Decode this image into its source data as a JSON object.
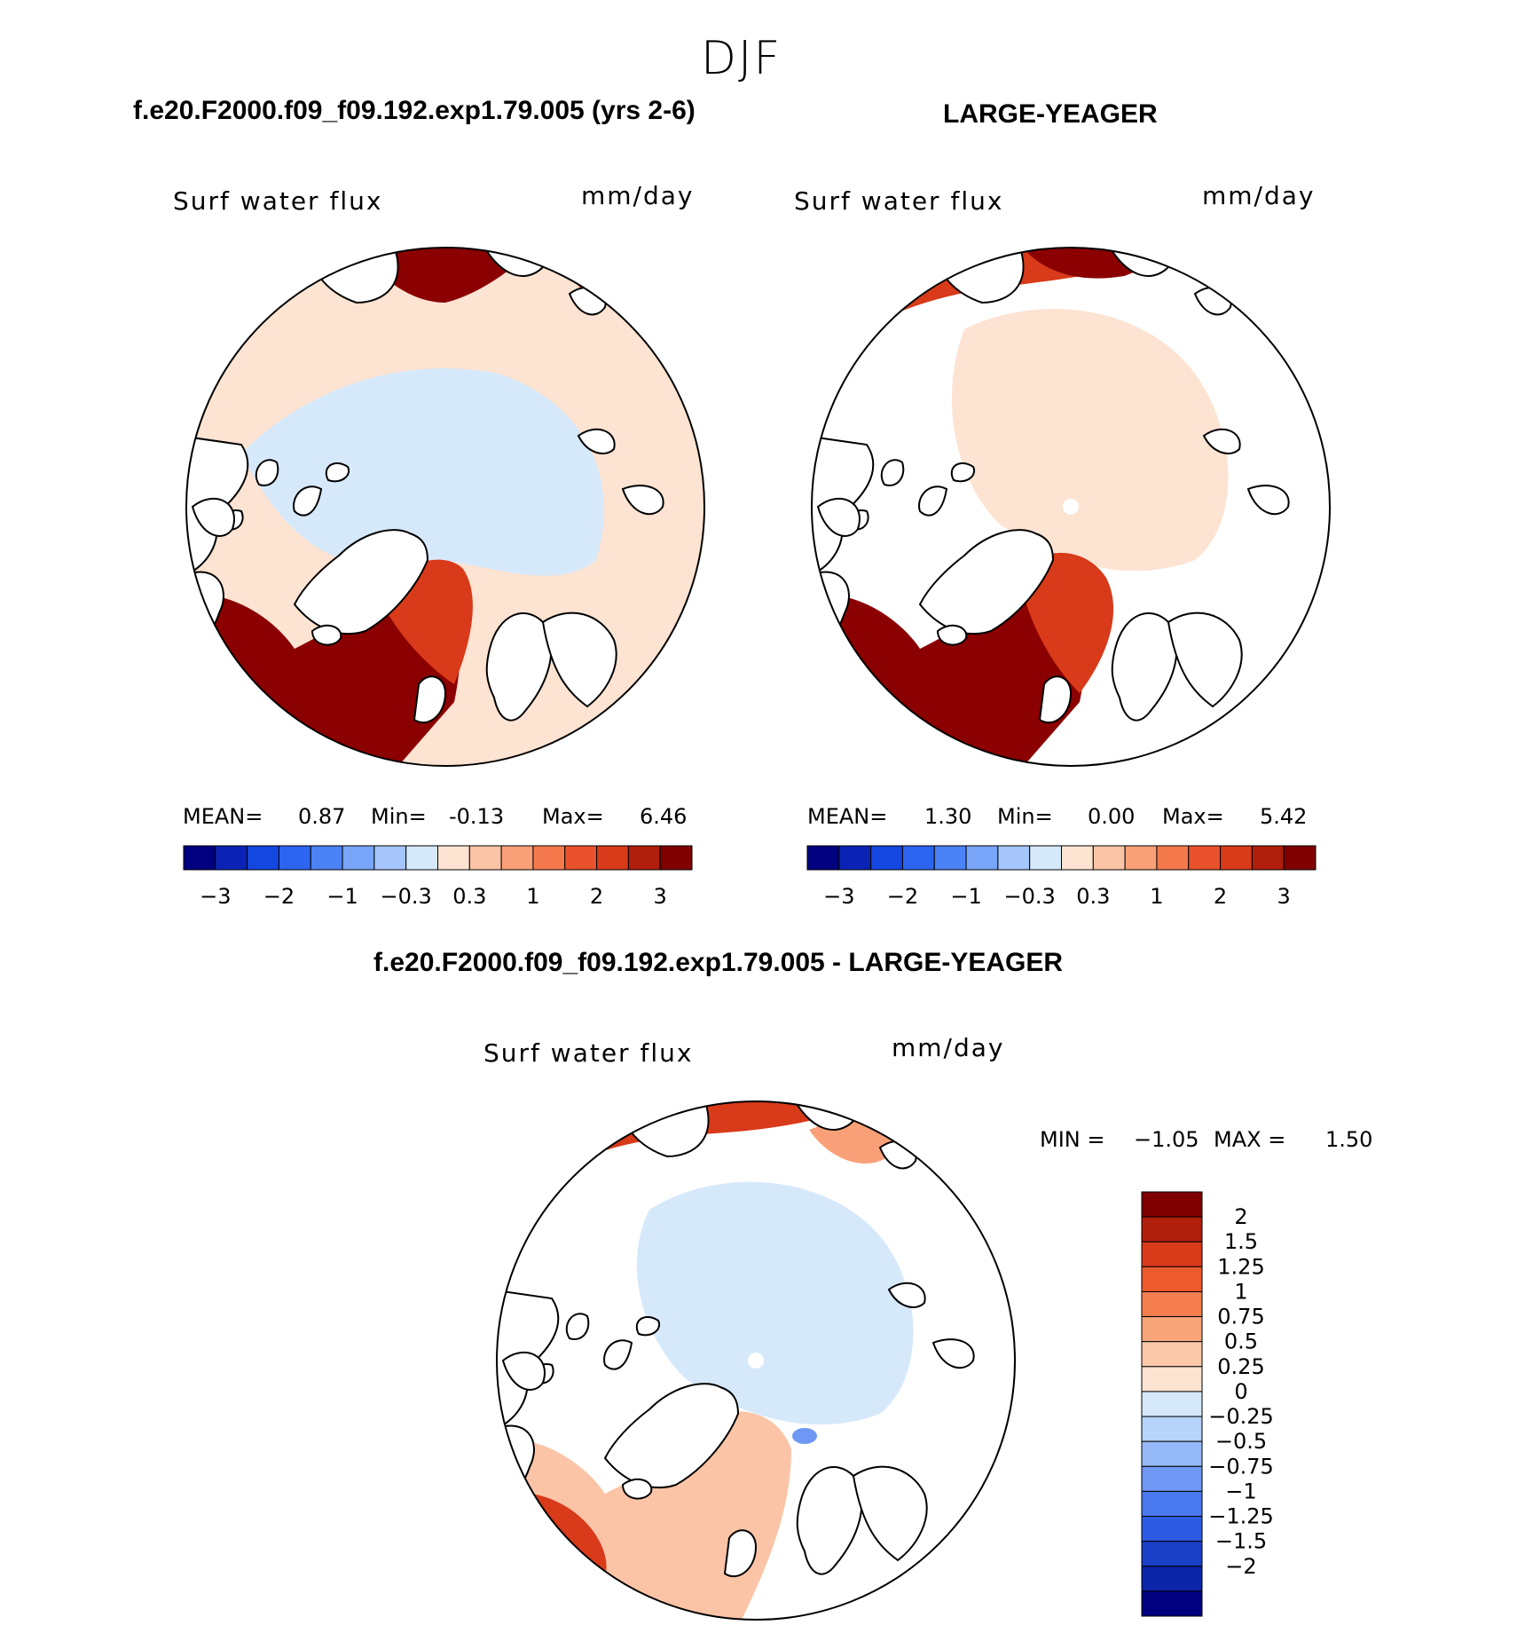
{
  "page": {
    "season": "DJF",
    "left_title": "f.e20.F2000.f09_f09.192.exp1.79.005 (yrs 2-6)",
    "right_title": "LARGE-YEAGER",
    "diff_title": "f.e20.F2000.f09_f09.192.exp1.79.005 - LARGE-YEAGER"
  },
  "colors": {
    "ocean_warm_dark": "#8b0000",
    "ocean_warm": "#d83a1a",
    "light_warm": "#fde3d2",
    "light_cool": "#d6e9fb",
    "land": "#ffffff",
    "coast": "#000000",
    "pole": "#ffffff"
  },
  "palette_main": [
    "#000080",
    "#0a23b4",
    "#1446e0",
    "#2d64f0",
    "#4b82f5",
    "#78a5f8",
    "#a5c5fb",
    "#d6e9fb",
    "#fde3d2",
    "#fcc4a6",
    "#f9a079",
    "#f47a4e",
    "#e9522d",
    "#d83a1a",
    "#b01e0c",
    "#800000"
  ],
  "palette_diff": [
    "#800000",
    "#b01e0c",
    "#d83a1a",
    "#ee5a2c",
    "#f57e4e",
    "#f9a57a",
    "#fcc9aa",
    "#fde3d2",
    "#d6e9fb",
    "#b6d3fa",
    "#96b9f8",
    "#6f98f4",
    "#4a78ee",
    "#2d5be3",
    "#1a40c8",
    "#0a25a8",
    "#000080"
  ],
  "chart_data": [
    {
      "type": "heatmap",
      "projection": "north-polar-stereographic",
      "title": "f.e20.F2000.f09_f09.192.exp1.79.005 (yrs 2-6)",
      "variable": "Surf water flux",
      "units": "mm/day",
      "stats": {
        "mean_label": "MEAN=",
        "mean": "0.87",
        "min_label": "Min=",
        "min": "-0.13",
        "max_label": "Max=",
        "max": "6.46"
      },
      "colorbar_labels": [
        "−3",
        "−2",
        "−1",
        "−0.3",
        "0.3",
        "1",
        "2",
        "3"
      ]
    },
    {
      "type": "heatmap",
      "projection": "north-polar-stereographic",
      "title": "LARGE-YEAGER",
      "variable": "Surf water flux",
      "units": "mm/day",
      "stats": {
        "mean_label": "MEAN=",
        "mean": "1.30",
        "min_label": "Min=",
        "min": "0.00",
        "max_label": "Max=",
        "max": "5.42"
      },
      "colorbar_labels": [
        "−3",
        "−2",
        "−1",
        "−0.3",
        "0.3",
        "1",
        "2",
        "3"
      ]
    },
    {
      "type": "heatmap",
      "projection": "north-polar-stereographic",
      "title": "f.e20.F2000.f09_f09.192.exp1.79.005 - LARGE-YEAGER",
      "variable": "Surf water flux",
      "units": "mm/day",
      "stats": {
        "min_label": "MIN =",
        "min": "−1.05",
        "max_label": "MAX =",
        "max": "1.50"
      },
      "colorbar_labels": [
        "2",
        "1.5",
        "1.25",
        "1",
        "0.75",
        "0.5",
        "0.25",
        "0",
        "−0.25",
        "−0.5",
        "−0.75",
        "−1",
        "−1.25",
        "−1.5",
        "−2"
      ]
    }
  ]
}
